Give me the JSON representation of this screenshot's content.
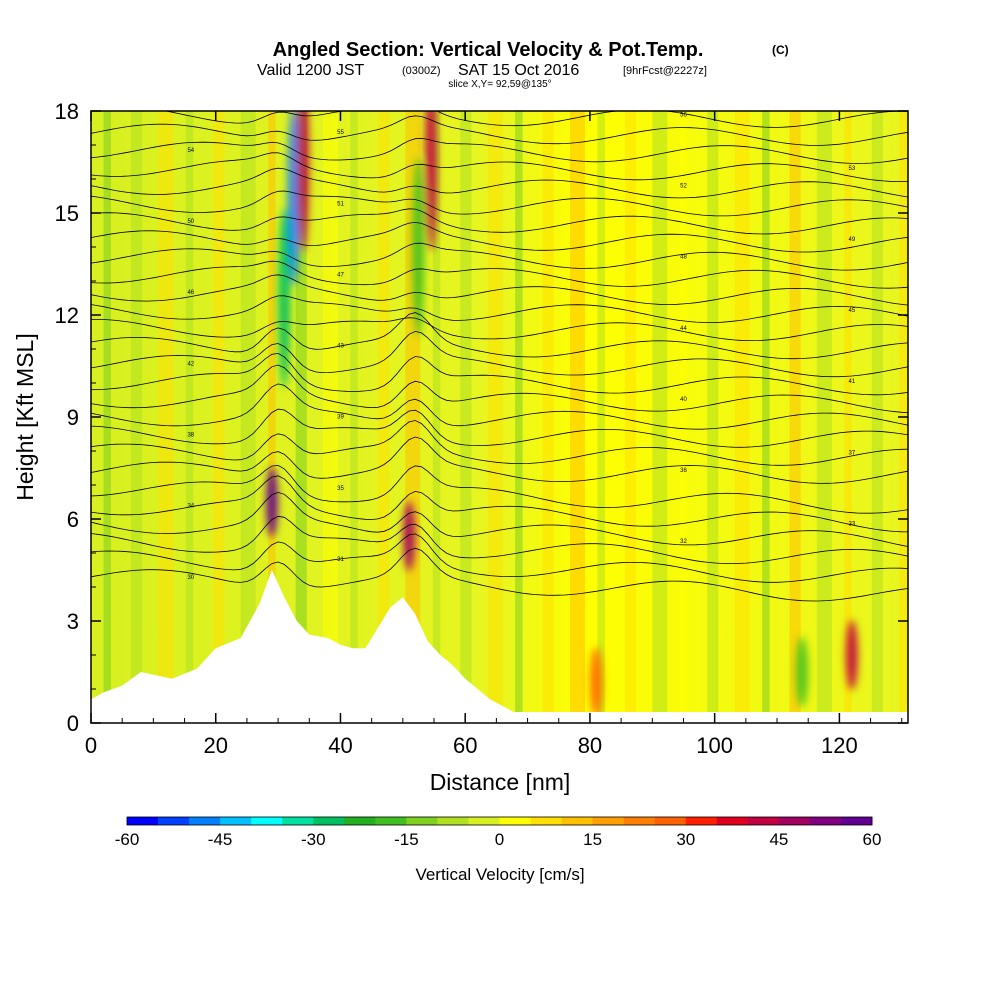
{
  "header": {
    "title": "Angled Section: Vertical Velocity & Pot.Temp.",
    "title_unit": "(C)",
    "subtitle_valid": "Valid 1200 JST",
    "subtitle_utc": "(0300Z)",
    "subtitle_date": "SAT 15 Oct 2016",
    "subtitle_fcst": "[9hrFcst@2227z]",
    "slice_line": "slice X,Y= 92,59@135°"
  },
  "chart_data": {
    "type": "heatmap",
    "title": "Angled Section: Vertical Velocity & Pot.Temp. (C)",
    "xlabel": "Distance [nm]",
    "ylabel": "Height [Kft MSL]",
    "xlim": [
      0,
      131
    ],
    "ylim": [
      0,
      18
    ],
    "xticks": [
      0,
      20,
      40,
      60,
      80,
      100,
      120
    ],
    "yticks": [
      0,
      3,
      6,
      9,
      12,
      15,
      18
    ],
    "colorbar": {
      "label": "Vertical Velocity [cm/s]",
      "ticks": [
        -60,
        -45,
        -30,
        -15,
        0,
        15,
        30,
        45,
        60
      ],
      "range": [
        -60,
        60
      ],
      "step": 5,
      "colors": [
        "#0000ff",
        "#0040ff",
        "#0080ff",
        "#00c0ff",
        "#00ffff",
        "#00e0a0",
        "#00c060",
        "#20b020",
        "#40c020",
        "#80d020",
        "#b0e020",
        "#d8f020",
        "#ffff00",
        "#ffe000",
        "#ffc000",
        "#ffa000",
        "#ff8000",
        "#ff6000",
        "#ff2000",
        "#e00020",
        "#c00040",
        "#a00060",
        "#800080",
        "#600090"
      ]
    },
    "velocity_cells": [
      {
        "x": 29,
        "z": 6.5,
        "v": 55
      },
      {
        "x": 32.5,
        "z": 15.5,
        "v": -50
      },
      {
        "x": 31,
        "z": 12.5,
        "v": -30
      },
      {
        "x": 34,
        "z": 16.5,
        "v": 40
      },
      {
        "x": 51,
        "z": 5.5,
        "v": 45
      },
      {
        "x": 54.5,
        "z": 16.5,
        "v": 40
      },
      {
        "x": 52.5,
        "z": 14,
        "v": -20
      },
      {
        "x": 122,
        "z": 2,
        "v": 40
      },
      {
        "x": 81,
        "z": 1.2,
        "v": 25
      },
      {
        "x": 114,
        "z": 1.5,
        "v": -20
      }
    ],
    "theta_labels": [
      "30",
      "31",
      "32",
      "33",
      "34",
      "35",
      "36",
      "37",
      "38",
      "39",
      "40",
      "41",
      "42",
      "43",
      "44",
      "45",
      "46",
      "47",
      "48",
      "49",
      "50",
      "51",
      "52",
      "53",
      "54",
      "55",
      "56"
    ],
    "theta_note": "Isentropes (°C)",
    "terrain_kft": [
      [
        0,
        0.7
      ],
      [
        2,
        0.9
      ],
      [
        5,
        1.1
      ],
      [
        8,
        1.5
      ],
      [
        13,
        1.3
      ],
      [
        17,
        1.6
      ],
      [
        20,
        2.2
      ],
      [
        24,
        2.5
      ],
      [
        27,
        3.5
      ],
      [
        29,
        4.5
      ],
      [
        31,
        3.7
      ],
      [
        33,
        3.0
      ],
      [
        35,
        2.6
      ],
      [
        38,
        2.5
      ],
      [
        40,
        2.3
      ],
      [
        42,
        2.2
      ],
      [
        44,
        2.2
      ],
      [
        46,
        2.8
      ],
      [
        48,
        3.4
      ],
      [
        50,
        3.7
      ],
      [
        52,
        3.2
      ],
      [
        54,
        2.4
      ],
      [
        56,
        2.0
      ],
      [
        58,
        1.7
      ],
      [
        60,
        1.3
      ],
      [
        62,
        1.0
      ],
      [
        64,
        0.7
      ],
      [
        66,
        0.5
      ],
      [
        68,
        0.3
      ],
      [
        70,
        0.2
      ],
      [
        72,
        0.0
      ],
      [
        131,
        0.0
      ]
    ]
  }
}
